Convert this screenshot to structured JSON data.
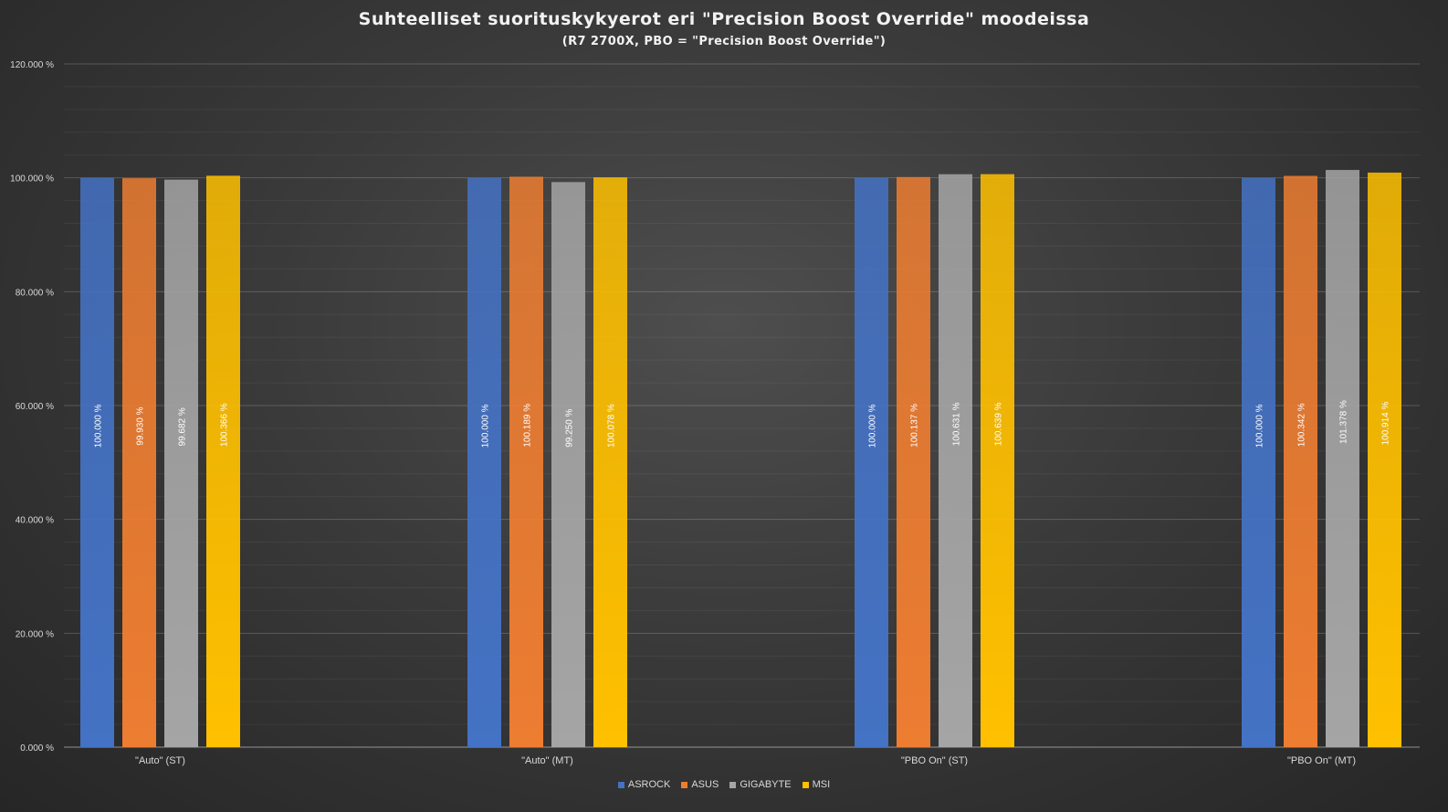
{
  "chart_data": {
    "type": "bar",
    "title": "Suhteelliset  suorituskykyerot  eri  \"Precision  Boost  Override\"  moodeissa",
    "subtitle": "(R7  2700X,  PBO  =  \"Precision  Boost  Override\")",
    "categories": [
      "\"Auto\" (ST)",
      "\"Auto\" (MT)",
      "\"PBO On\" (ST)",
      "\"PBO On\" (MT)"
    ],
    "series": [
      {
        "name": "ASROCK",
        "color": "#4472c4",
        "values": [
          100.0,
          100.0,
          100.0,
          100.0
        ],
        "labels": [
          "100.000 %",
          "100.000 %",
          "100.000 %",
          "100.000 %"
        ]
      },
      {
        "name": "ASUS",
        "color": "#ed7d31",
        "values": [
          99.93,
          100.189,
          100.137,
          100.342
        ],
        "labels": [
          "99.930 %",
          "100.189 %",
          "100.137 %",
          "100.342 %"
        ]
      },
      {
        "name": "GIGABYTE",
        "color": "#a5a5a5",
        "values": [
          99.682,
          99.25,
          100.631,
          101.378
        ],
        "labels": [
          "99.682 %",
          "99.250 %",
          "100.631 %",
          "101.378 %"
        ]
      },
      {
        "name": "MSI",
        "color": "#ffc000",
        "values": [
          100.366,
          100.078,
          100.639,
          100.914
        ],
        "labels": [
          "100.366 %",
          "100.078 %",
          "100.639 %",
          "100.914 %"
        ]
      }
    ],
    "ylim": [
      0,
      120
    ],
    "yticks": [
      0,
      20,
      40,
      60,
      80,
      100,
      120
    ],
    "ytick_labels": [
      "0.000 %",
      "20.000 %",
      "40.000 %",
      "60.000 %",
      "80.000 %",
      "100.000 %",
      "120.000 %"
    ],
    "grid": true,
    "legend_position": "bottom"
  }
}
